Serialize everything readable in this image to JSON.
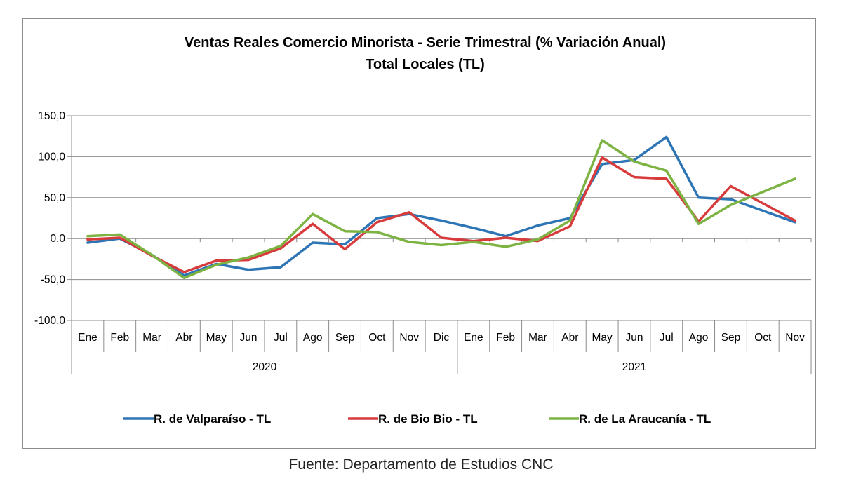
{
  "chart_data": {
    "type": "line",
    "title": "Ventas Reales Comercio Minorista - Serie Trimestral (% Variación Anual)",
    "subtitle": "Total Locales (TL)",
    "categories": [
      "Ene",
      "Feb",
      "Mar",
      "Abr",
      "May",
      "Jun",
      "Jul",
      "Ago",
      "Sep",
      "Oct",
      "Nov",
      "Dic",
      "Ene",
      "Feb",
      "Mar",
      "Abr",
      "May",
      "Jun",
      "Jul",
      "Ago",
      "Sep",
      "Oct",
      "Nov"
    ],
    "year_groups": [
      {
        "label": "2020",
        "count": 12
      },
      {
        "label": "2021",
        "count": 11
      }
    ],
    "ylim": [
      -100,
      150
    ],
    "yticks": [
      -100,
      -50,
      0,
      50,
      100,
      150
    ],
    "ytick_labels": [
      "-100,0",
      "-50,0",
      "0,0",
      "50,0",
      "100,0",
      "150,0"
    ],
    "grid": true,
    "legend_position": "bottom",
    "series": [
      {
        "name": "R. de Valparaíso - TL",
        "color": "#2e75b6",
        "values": [
          -5,
          0,
          -20,
          -45,
          -31,
          -38,
          -35,
          -5,
          -7,
          25,
          30,
          22,
          13,
          3,
          16,
          25,
          91,
          96,
          124,
          50,
          48,
          34,
          20
        ]
      },
      {
        "name": "R. de Bio Bio - TL",
        "color": "#d83b3b",
        "values": [
          -1,
          1,
          -21,
          -41,
          -27,
          -26,
          -12,
          18,
          -13,
          20,
          32,
          1,
          -3,
          1,
          -3,
          15,
          99,
          75,
          73,
          21,
          64,
          43,
          22
        ]
      },
      {
        "name": "R. de La Araucanía - TL",
        "color": "#7cb342",
        "values": [
          3,
          5,
          -20,
          -48,
          -32,
          -23,
          -9,
          30,
          9,
          8,
          -4,
          -8,
          -4,
          -10,
          -1,
          22,
          120,
          94,
          83,
          18,
          41,
          57,
          73
        ]
      }
    ]
  },
  "source_note": "Fuente: Departamento de Estudios CNC"
}
